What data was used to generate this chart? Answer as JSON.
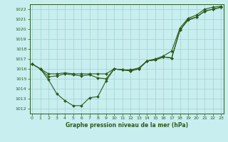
{
  "background_color": "#c8eef0",
  "grid_color": "#a0d4c8",
  "line_color": "#2d5a1b",
  "xlabel": "Graphe pression niveau de la mer (hPa)",
  "ylim": [
    1011.5,
    1022.5
  ],
  "xlim": [
    -0.3,
    23.3
  ],
  "yticks": [
    1012,
    1013,
    1014,
    1015,
    1016,
    1017,
    1018,
    1019,
    1020,
    1021,
    1022
  ],
  "xticks": [
    0,
    1,
    2,
    3,
    4,
    5,
    6,
    7,
    8,
    9,
    10,
    11,
    12,
    13,
    14,
    15,
    16,
    17,
    18,
    19,
    20,
    21,
    22,
    23
  ],
  "series_dip": [
    1016.5,
    1016.0,
    1014.9,
    1013.5,
    1012.8,
    1012.3,
    1012.3,
    1013.1,
    1013.2,
    1014.8,
    1016.0,
    1015.9,
    1015.8,
    1016.0,
    1016.8,
    1016.9,
    1017.2,
    1017.1,
    1019.9,
    1020.9,
    1021.2,
    1021.8,
    1022.0,
    1022.2
  ],
  "series_mid": [
    1016.5,
    1016.0,
    1015.2,
    1015.3,
    1015.5,
    1015.4,
    1015.3,
    1015.4,
    1015.1,
    1015.0,
    1016.0,
    1015.9,
    1015.8,
    1016.0,
    1016.8,
    1016.9,
    1017.2,
    1017.1,
    1019.9,
    1021.0,
    1021.2,
    1021.8,
    1022.0,
    1022.2
  ],
  "series_top": [
    1016.5,
    1016.0,
    1015.5,
    1015.5,
    1015.6,
    1015.5,
    1015.5,
    1015.5,
    1015.5,
    1015.5,
    1016.0,
    1015.9,
    1015.9,
    1016.1,
    1016.8,
    1017.0,
    1017.3,
    1017.8,
    1020.1,
    1021.1,
    1021.4,
    1022.0,
    1022.2,
    1022.3
  ]
}
